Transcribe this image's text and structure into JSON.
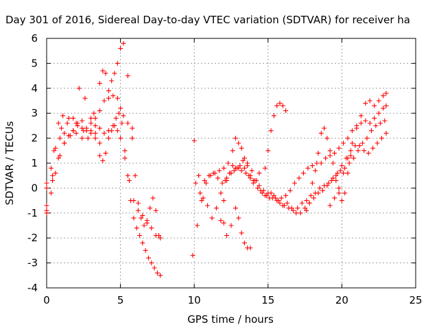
{
  "chart_data": {
    "type": "scatter",
    "title": "Day 301 of 2016, Sidereal Day-to-day VTEC variation (SDTVAR) for receiver ha",
    "xlabel": "GPS time / hours",
    "ylabel": "SDTVAR / TECUs",
    "xlim": [
      0,
      25
    ],
    "ylim": [
      -4,
      6
    ],
    "xticks": [
      "0",
      "5",
      "10",
      "15",
      "20",
      "25"
    ],
    "yticks": [
      "-4",
      "-3",
      "-2",
      "-1",
      "0",
      "1",
      "2",
      "3",
      "4",
      "5",
      "6"
    ],
    "grid": true,
    "marker": "+",
    "color": "#ff0000",
    "series": [
      {
        "x": [
          0.0,
          0.3,
          0.6,
          0.9,
          1.2,
          1.5,
          1.8,
          2.1,
          2.4,
          2.7,
          3.0,
          3.3,
          3.6,
          3.9,
          4.2,
          4.5,
          4.7,
          4.9,
          5.1,
          5.3,
          5.5,
          5.7,
          5.9,
          6.1,
          6.3,
          6.5,
          6.7,
          6.9,
          7.1,
          7.3,
          7.5,
          7.7
        ],
        "y": [
          -1.0,
          -0.2,
          0.6,
          1.3,
          1.8,
          2.1,
          2.3,
          2.5,
          2.4,
          2.3,
          2.6,
          2.8,
          2.4,
          2.2,
          2.3,
          2.5,
          2.8,
          3.0,
          2.6,
          1.5,
          0.5,
          -0.5,
          -1.2,
          -1.6,
          -1.9,
          -2.2,
          -2.5,
          -2.8,
          -3.0,
          -3.2,
          -3.4,
          -3.5
        ]
      },
      {
        "x": [
          0.0,
          0.3,
          0.6,
          0.9,
          1.2,
          1.5,
          1.8,
          2.1,
          2.4,
          2.7,
          3.0,
          3.3,
          3.6,
          3.9,
          4.2,
          4.5,
          4.8,
          5.0,
          5.2,
          5.5,
          5.8
        ],
        "y": [
          0.2,
          0.8,
          1.6,
          2.0,
          2.2,
          2.1,
          2.3,
          2.6,
          2.7,
          2.4,
          2.2,
          2.5,
          3.1,
          3.5,
          3.6,
          3.7,
          3.6,
          3.2,
          2.9,
          2.6,
          2.4
        ]
      },
      {
        "x": [
          0.0,
          0.4,
          0.8,
          1.2,
          1.6,
          2.0,
          2.4,
          2.8,
          3.2,
          3.6,
          3.8,
          4.0,
          4.2,
          4.4,
          4.6,
          4.8,
          5.0,
          5.2,
          5.5,
          5.8,
          6.0,
          6.2,
          6.4,
          6.6,
          6.8,
          7.0,
          7.2,
          7.4,
          7.6
        ],
        "y": [
          -0.7,
          0.3,
          1.2,
          1.8,
          2.1,
          2.2,
          2.0,
          2.0,
          3.0,
          4.2,
          4.7,
          4.6,
          3.9,
          4.3,
          4.6,
          5.0,
          5.6,
          5.8,
          4.5,
          2.0,
          0.5,
          -0.6,
          -1.2,
          -1.5,
          -1.4,
          -0.8,
          -0.4,
          -0.9,
          -1.9
        ]
      },
      {
        "x": [
          0.0,
          0.5,
          1.0,
          1.5,
          2.0,
          2.5,
          3.0,
          3.3,
          3.6,
          3.8,
          4.0,
          4.2,
          4.4,
          4.6,
          4.8,
          5.0,
          5.3,
          5.6,
          5.9,
          6.2,
          6.5,
          6.8,
          7.1,
          7.4,
          7.7
        ],
        "y": [
          0.0,
          1.5,
          2.4,
          2.8,
          2.6,
          2.3,
          2.3,
          2.0,
          1.3,
          1.1,
          1.4,
          2.0,
          2.3,
          2.5,
          2.3,
          2.0,
          1.2,
          0.3,
          -0.5,
          -0.9,
          -1.1,
          -1.3,
          -1.6,
          -1.9,
          -2.0
        ]
      },
      {
        "x": [
          0.0,
          0.4,
          0.8,
          1.1,
          1.4,
          1.8,
          2.2,
          2.6,
          3.0,
          3.3,
          3.6
        ],
        "y": [
          -0.9,
          0.5,
          2.6,
          2.9,
          2.6,
          2.8,
          4.0,
          3.6,
          2.8,
          2.2,
          1.8
        ]
      },
      {
        "x": [
          9.9,
          10.2,
          10.5,
          10.8,
          11.1,
          11.4,
          11.7,
          12.0,
          12.3,
          12.6,
          12.9,
          13.2,
          13.5,
          13.8,
          14.1,
          14.4,
          14.7,
          15.0,
          15.3,
          15.6,
          15.9,
          16.2,
          16.5,
          16.8,
          17.1,
          17.4,
          17.7,
          18.0,
          18.3,
          18.6,
          18.9,
          19.2,
          19.5,
          19.8,
          20.1,
          20.4,
          20.7,
          21.0,
          21.3,
          21.6,
          21.9,
          22.2,
          22.5,
          22.8,
          23.0
        ],
        "y": [
          -2.7,
          -1.5,
          -0.5,
          0.2,
          0.5,
          0.6,
          0.7,
          0.8,
          1.0,
          0.9,
          0.8,
          0.7,
          0.6,
          0.5,
          0.3,
          0.1,
          -0.1,
          -0.2,
          -0.4,
          -0.5,
          -0.4,
          -0.3,
          -0.1,
          0.2,
          0.4,
          0.6,
          0.8,
          0.9,
          1.0,
          1.0,
          1.2,
          1.3,
          1.4,
          1.6,
          1.8,
          2.0,
          2.3,
          2.5,
          2.6,
          2.7,
          2.6,
          2.8,
          3.0,
          3.2,
          3.3
        ]
      },
      {
        "x": [
          10.0,
          10.3,
          10.6,
          10.9,
          11.2,
          11.5,
          11.8,
          12.1,
          12.4,
          12.7,
          13.0,
          13.3,
          13.6,
          13.9,
          14.2,
          14.5,
          14.8,
          15.1,
          15.4,
          15.7,
          16.0,
          16.3,
          16.6,
          16.9,
          17.2,
          17.5,
          17.8,
          18.1,
          18.4,
          18.7,
          19.0,
          19.3,
          19.6,
          19.9,
          20.2,
          20.5,
          20.8,
          21.1,
          21.4,
          21.7,
          22.0,
          22.3,
          22.6,
          22.9
        ],
        "y": [
          1.9,
          0.5,
          -0.4,
          -0.7,
          -1.2,
          -0.8,
          -0.2,
          0.3,
          0.6,
          0.7,
          0.8,
          1.1,
          1.0,
          0.7,
          0.3,
          -0.1,
          -0.3,
          -0.4,
          -0.3,
          -0.5,
          -0.7,
          -0.6,
          -0.8,
          -1.0,
          -1.0,
          -0.8,
          -0.6,
          -0.4,
          -0.2,
          -0.1,
          0.1,
          0.3,
          0.5,
          0.7,
          0.8,
          1.0,
          1.2,
          1.5,
          1.8,
          2.0,
          2.3,
          2.5,
          2.6,
          2.7
        ]
      },
      {
        "x": [
          10.1,
          10.4,
          10.7,
          11.0,
          11.3,
          11.6,
          11.9,
          12.2,
          12.5,
          12.8,
          13.1,
          13.4,
          13.7,
          14.0,
          14.3,
          14.6,
          14.9,
          15.2,
          15.5,
          15.8,
          16.1,
          16.4,
          16.7,
          17.0,
          17.3,
          17.6,
          17.9,
          18.2,
          18.5,
          18.8,
          19.1,
          19.4,
          19.7,
          20.0,
          20.3,
          20.6,
          20.9,
          21.2,
          21.5,
          21.8,
          22.1,
          22.4,
          22.7,
          23.0
        ],
        "y": [
          0.2,
          -0.2,
          0.3,
          0.5,
          0.6,
          0.4,
          0.2,
          0.4,
          0.6,
          0.8,
          0.9,
          0.8,
          0.5,
          0.3,
          0.0,
          -0.2,
          -0.3,
          -0.2,
          -0.4,
          -0.6,
          -0.7,
          -0.8,
          -0.9,
          -0.8,
          -0.6,
          -0.5,
          -0.3,
          -0.2,
          0.0,
          0.1,
          0.2,
          0.4,
          0.6,
          0.9,
          1.2,
          1.5,
          1.7,
          1.7,
          1.5,
          1.4,
          1.6,
          1.8,
          2.0,
          2.2
        ]
      },
      {
        "x": [
          11.8,
          12.0,
          12.2,
          12.4,
          12.6,
          12.8,
          13.0,
          13.2,
          13.4,
          13.6,
          13.8,
          14.0,
          14.2,
          14.4
        ],
        "y": [
          -1.3,
          -0.5,
          0.3,
          0.6,
          1.5,
          2.0,
          1.8,
          1.6,
          1.2,
          0.9,
          0.4,
          0.2,
          0.3,
          0.6
        ]
      },
      {
        "x": [
          12.0,
          12.2,
          12.5,
          12.8,
          13.0,
          13.2,
          13.4,
          13.6,
          13.8
        ],
        "y": [
          -1.4,
          -1.9,
          -1.5,
          -0.8,
          -1.2,
          -1.8,
          -2.2,
          -2.4,
          -2.4
        ]
      },
      {
        "x": [
          14.8,
          15.0,
          15.2,
          15.4,
          15.6,
          15.8,
          16.0,
          16.2
        ],
        "y": [
          0.8,
          1.5,
          2.3,
          2.9,
          3.3,
          3.4,
          3.3,
          3.1
        ]
      },
      {
        "x": [
          17.6,
          17.8,
          18.0,
          18.2,
          18.4,
          18.6,
          18.8,
          19.0,
          19.2,
          19.4,
          19.6,
          19.8,
          20.0,
          20.2,
          20.4,
          20.6
        ],
        "y": [
          -0.9,
          -0.6,
          0.2,
          0.7,
          1.4,
          2.2,
          2.4,
          2.0,
          1.5,
          1.0,
          0.3,
          -0.2,
          -0.5,
          -0.2,
          0.6,
          1.3
        ]
      },
      {
        "x": [
          19.2,
          19.5,
          19.8,
          20.1,
          20.4,
          20.7,
          21.0,
          21.3,
          21.6,
          21.9,
          22.2,
          22.5,
          22.8,
          23.0
        ],
        "y": [
          -0.7,
          -0.4,
          0.0,
          0.6,
          1.2,
          1.8,
          2.4,
          2.9,
          3.4,
          3.5,
          3.3,
          3.5,
          3.7,
          3.8
        ]
      }
    ]
  }
}
